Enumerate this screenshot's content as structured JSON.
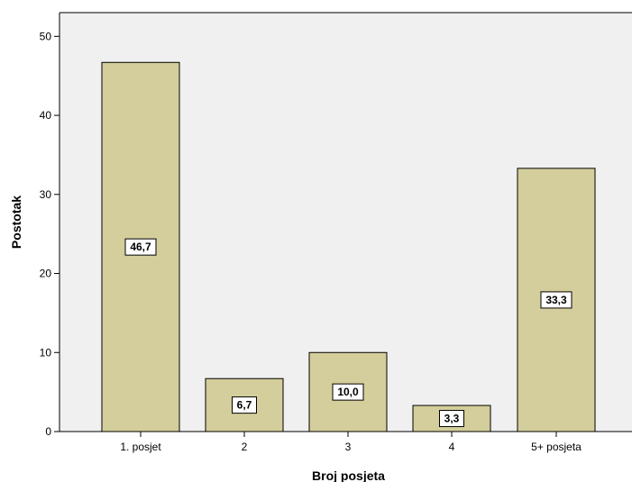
{
  "chart_data": {
    "type": "bar",
    "categories": [
      "1. posjet",
      "2",
      "3",
      "4",
      "5+ posjeta"
    ],
    "values": [
      46.7,
      6.7,
      10.0,
      3.3,
      33.3
    ],
    "data_labels": [
      "46,7",
      "6,7",
      "10,0",
      "3,3",
      "33,3"
    ],
    "title": "",
    "xlabel": "Broj posjeta",
    "ylabel": "Postotak",
    "ylim": [
      0,
      50
    ],
    "yticks": [
      "0",
      "10",
      "20",
      "30",
      "40",
      "50"
    ],
    "grid": false,
    "colors": {
      "plot_background": "#f0f0f0",
      "bar_fill": "#d3ce9b",
      "bar_stroke": "#000000",
      "label_box": "#ffffff"
    }
  }
}
